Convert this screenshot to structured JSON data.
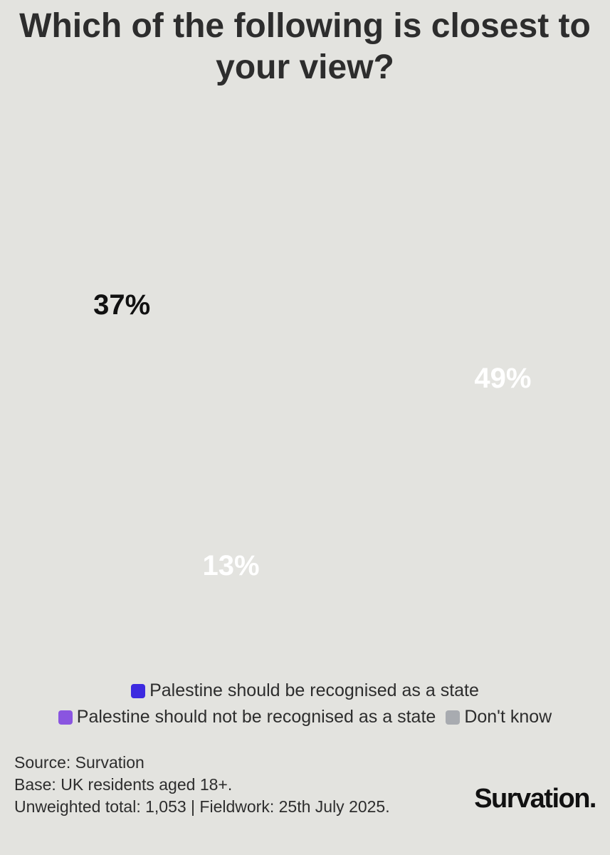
{
  "chart_data": {
    "type": "pie",
    "title": "Which of the following is closest to your view?",
    "categories": [
      "Palestine should be recognised as a state",
      "Palestine should not be recognised as a state",
      "Don't know"
    ],
    "values": [
      49,
      13,
      37
    ],
    "value_labels": [
      "49%",
      "13%",
      "37%"
    ],
    "colors": [
      "#3d2ae0",
      "#8a55e0",
      "#a8abb0"
    ],
    "value_label_colors": [
      "#ffffff",
      "#ffffff",
      "#111111"
    ],
    "notes": [
      "Source: Survation",
      "Base: UK residents aged 18+.",
      "Unweighted total: 1,053 | Fieldwork: 25th July 2025."
    ]
  },
  "logo": "Survation."
}
